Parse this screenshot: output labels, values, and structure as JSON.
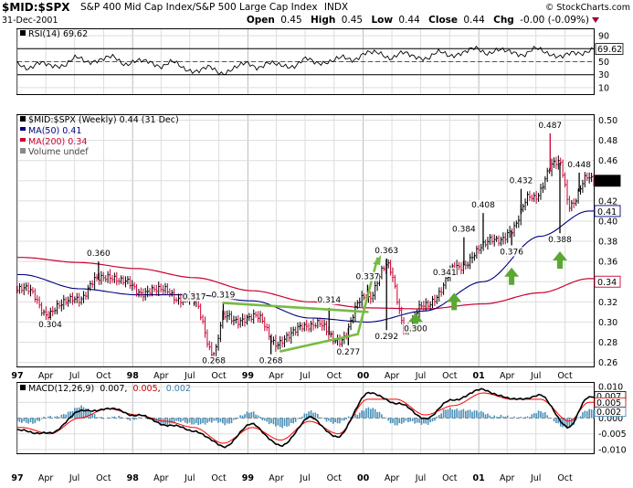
{
  "header": {
    "symbol": "$MID:$SPX",
    "description": "S&P 400 Mid Cap Index/S&P 500 Large Cap Index",
    "exchange": "INDX",
    "date": "31-Dec-2001",
    "open_label": "Open",
    "open": "0.45",
    "high_label": "High",
    "high": "0.45",
    "low_label": "Low",
    "low": "0.44",
    "close_label": "Close",
    "close": "0.44",
    "chg_label": "Chg",
    "chg": "-0.00 (-0.09%)",
    "copyright": "© StockCharts.com"
  },
  "rsi_panel": {
    "legend": "RSI(14) 69.62",
    "current_value": "69.62",
    "ticks": [
      90,
      70,
      50,
      30,
      10
    ],
    "levels": [
      70,
      50,
      30
    ],
    "ylim": [
      0,
      100
    ]
  },
  "price_panel": {
    "legend_main": "$MID:$SPX (Weekly) 0.44 (31 Dec)",
    "legend_ma50": "MA(50) 0.41",
    "legend_ma200": "MA(200) 0.34",
    "legend_volume": "Volume undef",
    "last_price_label": "0.44",
    "ma50_label": "0.41",
    "ma200_label": "0.34",
    "ticks": [
      "0.50",
      "0.48",
      "0.46",
      "0.44",
      "0.42",
      "0.40",
      "0.38",
      "0.36",
      "0.34",
      "0.32",
      "0.30",
      "0.28",
      "0.26"
    ],
    "ylim": [
      0.256,
      0.505
    ]
  },
  "macd_panel": {
    "legend_prefix": "MACD(12,26,9)",
    "macd_value": "0.007",
    "signal_value": "0.005",
    "hist_value": "0.002",
    "ticks": [
      "0.010",
      "0.005",
      "0.000",
      "-0.005",
      "-0.010"
    ],
    "right_labels": [
      "0.007",
      "0.005",
      "0.002"
    ],
    "ylim": [
      -0.0112,
      0.0112
    ]
  },
  "x_axis_labels": [
    "97",
    "Apr",
    "Jul",
    "Oct",
    "98",
    "Apr",
    "Jul",
    "Oct",
    "99",
    "Apr",
    "Jul",
    "Oct",
    "00",
    "Apr",
    "Jul",
    "Oct",
    "01",
    "Apr",
    "Jul",
    "Oct"
  ],
  "colors": {
    "price_up": "#000000",
    "price_down": "#cc0033",
    "ma50": "#000080",
    "ma200": "#cc0033",
    "trendline": "#77bb44",
    "arrow": "#5aa832",
    "macd_line": "#000000",
    "signal_line": "#ff0000",
    "histogram": "#4a90b8",
    "label_box_fill": "#ffffff"
  },
  "chart_data": [
    {
      "type": "line",
      "title": "RSI(14)",
      "x_range": [
        "1997-01-01",
        "2001-12-31"
      ],
      "ylim": [
        0,
        100
      ],
      "current_value": 69.62,
      "series": [
        {
          "name": "RSI(14)",
          "x": [
            "1997-01",
            "1997-04",
            "1997-07",
            "1997-10",
            "1998-01",
            "1998-04",
            "1998-07",
            "1998-10",
            "1999-01",
            "1999-04",
            "1999-07",
            "1999-10",
            "2000-01",
            "2000-04",
            "2000-07",
            "2000-10",
            "2001-01",
            "2001-04",
            "2001-07",
            "2001-10",
            "2001-12"
          ],
          "values": [
            45,
            44,
            52,
            54,
            49,
            47,
            38,
            36,
            46,
            44,
            50,
            52,
            62,
            60,
            58,
            63,
            68,
            64,
            66,
            58,
            69.62
          ]
        }
      ]
    },
    {
      "type": "line",
      "title": "$MID:$SPX (Weekly)",
      "x_range": [
        "1997-01-01",
        "2001-12-31"
      ],
      "ylim": [
        0.256,
        0.505
      ],
      "series": [
        {
          "name": "$MID:$SPX",
          "x": [
            "1997-01",
            "1997-04",
            "1997-07",
            "1997-10",
            "1998-01",
            "1998-04",
            "1998-07",
            "1998-09",
            "1998-10",
            "1999-01",
            "1999-04",
            "1999-07",
            "1999-10",
            "2000-01",
            "2000-03",
            "2000-05",
            "2000-07",
            "2000-10",
            "2001-01",
            "2001-04",
            "2001-06",
            "2001-09",
            "2001-10",
            "2001-12"
          ],
          "values": [
            0.333,
            0.31,
            0.326,
            0.347,
            0.332,
            0.33,
            0.32,
            0.27,
            0.302,
            0.305,
            0.28,
            0.3,
            0.283,
            0.326,
            0.355,
            0.296,
            0.315,
            0.35,
            0.375,
            0.39,
            0.425,
            0.458,
            0.418,
            0.44
          ]
        },
        {
          "name": "MA(50)",
          "x": [
            "1997-01",
            "1997-07",
            "1998-01",
            "1998-07",
            "1999-01",
            "1999-07",
            "2000-01",
            "2000-07",
            "2001-01",
            "2001-07",
            "2001-12"
          ],
          "values": [
            0.347,
            0.333,
            0.327,
            0.327,
            0.321,
            0.304,
            0.3,
            0.311,
            0.34,
            0.385,
            0.41
          ]
        },
        {
          "name": "MA(200)",
          "x": [
            "1997-01",
            "1997-07",
            "1998-01",
            "1998-07",
            "1999-01",
            "1999-07",
            "2000-01",
            "2000-07",
            "2001-01",
            "2001-07",
            "2001-12"
          ],
          "values": [
            0.364,
            0.359,
            0.353,
            0.344,
            0.331,
            0.32,
            0.314,
            0.313,
            0.318,
            0.329,
            0.343
          ]
        }
      ],
      "annotations": [
        {
          "label": "0.304",
          "x": "1997-04",
          "value": 0.304
        },
        {
          "label": "0.360",
          "x": "1997-09",
          "value": 0.36
        },
        {
          "label": "0.317",
          "x": "1998-07",
          "value": 0.317
        },
        {
          "label": "0.319",
          "x": "1998-10",
          "value": 0.319
        },
        {
          "label": "0.268",
          "x": "1998-09",
          "value": 0.268
        },
        {
          "label": "0.268",
          "x": "1999-03",
          "value": 0.268
        },
        {
          "label": "0.314",
          "x": "1999-09",
          "value": 0.314
        },
        {
          "label": "0.277",
          "x": "1999-11",
          "value": 0.277
        },
        {
          "label": "0.337",
          "x": "2000-01",
          "value": 0.337
        },
        {
          "label": "0.363",
          "x": "2000-03",
          "value": 0.363
        },
        {
          "label": "0.292",
          "x": "2000-03",
          "value": 0.292
        },
        {
          "label": "0.300",
          "x": "2000-06",
          "value": 0.3
        },
        {
          "label": "0.341",
          "x": "2000-09",
          "value": 0.341
        },
        {
          "label": "0.384",
          "x": "2000-11",
          "value": 0.384
        },
        {
          "label": "0.408",
          "x": "2001-01",
          "value": 0.408
        },
        {
          "label": "0.376",
          "x": "2001-04",
          "value": 0.376
        },
        {
          "label": "0.432",
          "x": "2001-05",
          "value": 0.432
        },
        {
          "label": "0.487",
          "x": "2001-08",
          "value": 0.487
        },
        {
          "label": "0.388",
          "x": "2001-09",
          "value": 0.388
        },
        {
          "label": "0.448",
          "x": "2001-11",
          "value": 0.448
        }
      ],
      "trendlines": [
        {
          "from": {
            "x": "1998-10",
            "value": 0.319
          },
          "to": {
            "x": "2000-01",
            "value": 0.31
          }
        },
        {
          "from": {
            "x": "1999-04",
            "value": 0.271
          },
          "to": {
            "x": "1999-12",
            "value": 0.288
          }
        },
        {
          "from": {
            "x": "1999-12",
            "value": 0.288
          },
          "to": {
            "x": "2000-02",
            "value": 0.363
          }
        }
      ],
      "arrows": [
        {
          "x": "2000-06",
          "value": 0.3
        },
        {
          "x": "2000-10",
          "value": 0.32
        },
        {
          "x": "2001-04",
          "value": 0.345
        },
        {
          "x": "2001-09",
          "value": 0.361
        }
      ]
    },
    {
      "type": "line",
      "title": "MACD(12,26,9)",
      "x_range": [
        "1997-01-01",
        "2001-12-31"
      ],
      "ylim": [
        -0.0112,
        0.0112
      ],
      "series": [
        {
          "name": "MACD",
          "x": [
            "1997-01",
            "1997-04",
            "1997-07",
            "1997-10",
            "1998-01",
            "1998-04",
            "1998-07",
            "1998-10",
            "1999-01",
            "1999-04",
            "1999-07",
            "1999-10",
            "2000-01",
            "2000-04",
            "2000-07",
            "2000-10",
            "2001-01",
            "2001-04",
            "2001-07",
            "2001-10",
            "2001-12"
          ],
          "values": [
            -0.004,
            -0.005,
            0.002,
            0.003,
            0.001,
            -0.002,
            -0.004,
            -0.009,
            -0.002,
            -0.009,
            0.0,
            -0.006,
            0.008,
            0.005,
            0.0,
            0.006,
            0.009,
            0.006,
            0.007,
            -0.003,
            0.007
          ]
        },
        {
          "name": "Signal",
          "x": [
            "1997-01",
            "1997-04",
            "1997-07",
            "1997-10",
            "1998-01",
            "1998-04",
            "1998-07",
            "1998-10",
            "1999-01",
            "1999-04",
            "1999-07",
            "1999-10",
            "2000-01",
            "2000-04",
            "2000-07",
            "2000-10",
            "2001-01",
            "2001-04",
            "2001-07",
            "2001-10",
            "2001-12"
          ],
          "values": [
            -0.003,
            -0.005,
            0.0,
            0.003,
            0.001,
            -0.001,
            -0.003,
            -0.008,
            -0.003,
            -0.007,
            -0.001,
            -0.005,
            0.006,
            0.006,
            0.001,
            0.004,
            0.008,
            0.006,
            0.006,
            -0.001,
            0.005
          ]
        },
        {
          "name": "Histogram",
          "x": [
            "1997-01",
            "1997-04",
            "1997-07",
            "1997-10",
            "1998-01",
            "1998-04",
            "1998-07",
            "1998-10",
            "1999-01",
            "1999-04",
            "1999-07",
            "1999-10",
            "2000-01",
            "2000-04",
            "2000-07",
            "2000-10",
            "2001-01",
            "2001-04",
            "2001-07",
            "2001-10",
            "2001-12"
          ],
          "values": [
            -0.001,
            0.0,
            0.002,
            0.0,
            0.0,
            -0.001,
            -0.001,
            -0.001,
            0.001,
            -0.002,
            0.001,
            -0.001,
            0.002,
            -0.001,
            -0.001,
            0.002,
            0.001,
            0.0,
            0.001,
            -0.002,
            0.002
          ]
        }
      ]
    }
  ]
}
